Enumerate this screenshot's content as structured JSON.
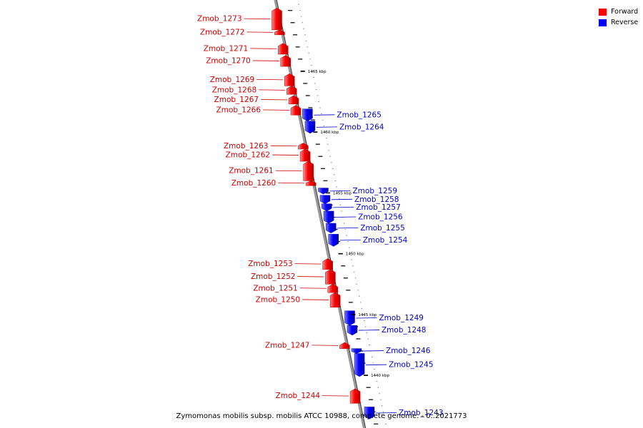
{
  "legend": {
    "forward": {
      "label": "Forward",
      "color": "#ff0000"
    },
    "reverse": {
      "label": "Reverse",
      "color": "#0000ff"
    }
  },
  "caption": "Zymomonas mobilis subsp. mobilis ATCC 10988, complete genome. - 0..2021773",
  "scale_labels": [
    {
      "text": "1465 kbp",
      "kbp": 1465
    },
    {
      "text": "1460 kbp",
      "kbp": 1460
    },
    {
      "text": "1455 kbp",
      "kbp": 1455
    },
    {
      "text": "1450 kbp",
      "kbp": 1450
    },
    {
      "text": "1445 kbp",
      "kbp": 1445
    },
    {
      "text": "1440 kbp",
      "kbp": 1440
    }
  ],
  "genes": [
    {
      "name": "Zmob_1273",
      "strand": "forward",
      "start_kbp": 1470.2,
      "end_kbp": 1468.4
    },
    {
      "name": "Zmob_1272",
      "strand": "forward",
      "start_kbp": 1468.4,
      "end_kbp": 1468.0
    },
    {
      "name": "Zmob_1271",
      "strand": "forward",
      "start_kbp": 1467.3,
      "end_kbp": 1466.4
    },
    {
      "name": "Zmob_1270",
      "strand": "forward",
      "start_kbp": 1466.3,
      "end_kbp": 1465.4
    },
    {
      "name": "Zmob_1269",
      "strand": "forward",
      "start_kbp": 1464.8,
      "end_kbp": 1463.8
    },
    {
      "name": "Zmob_1268",
      "strand": "forward",
      "start_kbp": 1463.8,
      "end_kbp": 1463.1
    },
    {
      "name": "Zmob_1267",
      "strand": "forward",
      "start_kbp": 1463.0,
      "end_kbp": 1462.3
    },
    {
      "name": "Zmob_1266",
      "strand": "forward",
      "start_kbp": 1462.2,
      "end_kbp": 1461.4
    },
    {
      "name": "Zmob_1265",
      "strand": "reverse",
      "start_kbp": 1460.9,
      "end_kbp": 1461.9
    },
    {
      "name": "Zmob_1264",
      "strand": "reverse",
      "start_kbp": 1459.9,
      "end_kbp": 1460.9
    },
    {
      "name": "Zmob_1263",
      "strand": "forward",
      "start_kbp": 1459.1,
      "end_kbp": 1458.6
    },
    {
      "name": "Zmob_1262",
      "strand": "forward",
      "start_kbp": 1458.6,
      "end_kbp": 1457.6
    },
    {
      "name": "Zmob_1261",
      "strand": "forward",
      "start_kbp": 1457.6,
      "end_kbp": 1456.0
    },
    {
      "name": "Zmob_1260",
      "strand": "forward",
      "start_kbp": 1456.0,
      "end_kbp": 1455.6
    },
    {
      "name": "Zmob_1259",
      "strand": "reverse",
      "start_kbp": 1454.9,
      "end_kbp": 1455.4
    },
    {
      "name": "Zmob_1258",
      "strand": "reverse",
      "start_kbp": 1454.1,
      "end_kbp": 1454.8
    },
    {
      "name": "Zmob_1257",
      "strand": "reverse",
      "start_kbp": 1453.5,
      "end_kbp": 1454.1
    },
    {
      "name": "Zmob_1256",
      "strand": "reverse",
      "start_kbp": 1452.5,
      "end_kbp": 1453.5
    },
    {
      "name": "Zmob_1255",
      "strand": "reverse",
      "start_kbp": 1451.7,
      "end_kbp": 1452.5
    },
    {
      "name": "Zmob_1254",
      "strand": "reverse",
      "start_kbp": 1450.6,
      "end_kbp": 1451.6
    },
    {
      "name": "Zmob_1253",
      "strand": "forward",
      "start_kbp": 1449.6,
      "end_kbp": 1448.7
    },
    {
      "name": "Zmob_1252",
      "strand": "forward",
      "start_kbp": 1448.7,
      "end_kbp": 1447.5
    },
    {
      "name": "Zmob_1251",
      "strand": "forward",
      "start_kbp": 1447.5,
      "end_kbp": 1446.8
    },
    {
      "name": "Zmob_1250",
      "strand": "forward",
      "start_kbp": 1446.8,
      "end_kbp": 1445.6
    },
    {
      "name": "Zmob_1249",
      "strand": "reverse",
      "start_kbp": 1444.1,
      "end_kbp": 1445.3
    },
    {
      "name": "Zmob_1248",
      "strand": "reverse",
      "start_kbp": 1443.3,
      "end_kbp": 1444.1
    },
    {
      "name": "Zmob_1247",
      "strand": "forward",
      "start_kbp": 1442.7,
      "end_kbp": 1442.2
    },
    {
      "name": "Zmob_1246",
      "strand": "reverse",
      "start_kbp": 1441.8,
      "end_kbp": 1442.2
    },
    {
      "name": "Zmob_1245",
      "strand": "reverse",
      "start_kbp": 1439.9,
      "end_kbp": 1441.8
    },
    {
      "name": "Zmob_1244",
      "strand": "forward",
      "start_kbp": 1438.9,
      "end_kbp": 1437.7
    },
    {
      "name": "Zmob_1243",
      "strand": "reverse",
      "start_kbp": 1436.4,
      "end_kbp": 1437.4
    }
  ]
}
